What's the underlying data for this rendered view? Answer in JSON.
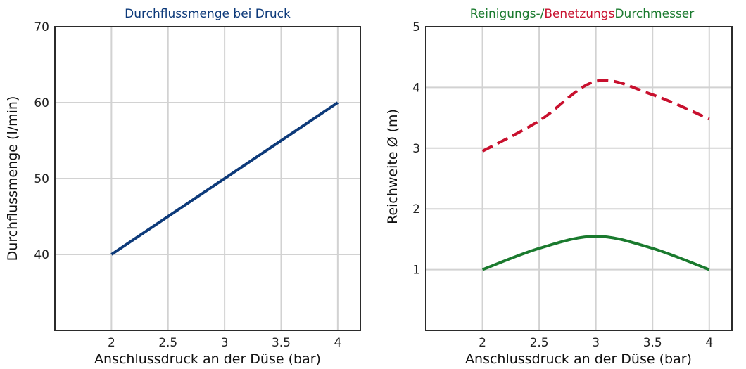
{
  "colors": {
    "flow": "#0d3a7a",
    "cleaning": "#1a7a2e",
    "wetting": "#c8102e",
    "grid": "#d2d2d2",
    "frame": "#2b2b2b"
  },
  "chart_data": [
    {
      "type": "line",
      "title": "Durchflussmenge bei Druck",
      "xlabel": "Anschlussdruck an der Düse (bar)",
      "ylabel": "Durchflussmenge (l/min)",
      "xlim": [
        1.5,
        4.2
      ],
      "ylim": [
        30,
        70
      ],
      "xticks": [
        "2",
        "2.5",
        "3",
        "3.5",
        "4"
      ],
      "yticks": [
        "70",
        "60",
        "50",
        "40"
      ],
      "grid": true,
      "series": [
        {
          "x": [
            2,
            4
          ],
          "y": [
            40,
            60
          ],
          "color": "#0d3a7a",
          "style": "solid"
        }
      ]
    },
    {
      "type": "line",
      "title_parts": [
        "Reinigungs-/",
        "Benetzungs",
        "Durchmesser"
      ],
      "xlabel": "Anschlussdruck an der Düse (bar)",
      "ylabel": "Reichweite Ø (m)",
      "xlim": [
        1.5,
        4.2
      ],
      "ylim": [
        0,
        5
      ],
      "xticks": [
        "2",
        "2.5",
        "3",
        "3.5",
        "4"
      ],
      "yticks": [
        "5",
        "4",
        "3",
        "2",
        "1"
      ],
      "grid": true,
      "series": [
        {
          "x": [
            2,
            2.5,
            3,
            3.5,
            4
          ],
          "y": [
            1.0,
            1.35,
            1.55,
            1.35,
            1.0
          ],
          "color": "#1a7a2e",
          "style": "solid"
        },
        {
          "x": [
            2,
            2.5,
            3,
            3.5,
            4
          ],
          "y": [
            2.95,
            3.45,
            4.1,
            3.88,
            3.48
          ],
          "color": "#c8102e",
          "style": "dashed"
        }
      ]
    }
  ]
}
